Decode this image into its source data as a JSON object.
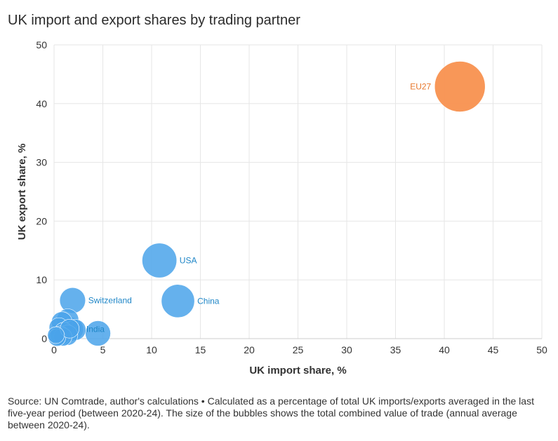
{
  "chart_data": {
    "type": "scatter",
    "title": "UK import and export shares by trading partner",
    "xlabel": "UK import share, %",
    "ylabel": "UK export share, %",
    "xlim": [
      0,
      50
    ],
    "ylim": [
      0,
      50
    ],
    "xticks": [
      0,
      5,
      10,
      15,
      20,
      25,
      30,
      35,
      40,
      45,
      50
    ],
    "yticks": [
      0,
      10,
      20,
      30,
      40,
      50
    ],
    "grid": true,
    "colors": {
      "default": "#4aa3ea",
      "eu": "#f8914f",
      "label_default": "#1f86c7",
      "label_eu": "#e8772b"
    },
    "points": [
      {
        "x": 41.6,
        "y": 42.9,
        "size": 1.0,
        "label": "EU27",
        "group": "eu"
      },
      {
        "x": 10.8,
        "y": 13.3,
        "size": 0.47,
        "label": "USA",
        "group": "default"
      },
      {
        "x": 12.7,
        "y": 6.4,
        "size": 0.43,
        "label": "China",
        "group": "default"
      },
      {
        "x": 1.9,
        "y": 6.5,
        "size": 0.26,
        "label": "Switzerland",
        "group": "default"
      },
      {
        "x": 1.8,
        "y": 1.6,
        "size": 0.22,
        "label": "India",
        "group": "default"
      },
      {
        "x": 4.5,
        "y": 0.9,
        "size": 0.25,
        "label": "",
        "group": "default"
      },
      {
        "x": 1.4,
        "y": 3.2,
        "size": 0.19,
        "label": "",
        "group": "default"
      },
      {
        "x": 0.8,
        "y": 2.8,
        "size": 0.17,
        "label": "",
        "group": "default"
      },
      {
        "x": 0.5,
        "y": 1.9,
        "size": 0.15,
        "label": "",
        "group": "default"
      },
      {
        "x": 2.2,
        "y": 1.5,
        "size": 0.17,
        "label": "",
        "group": "default"
      },
      {
        "x": 1.0,
        "y": 1.1,
        "size": 0.15,
        "label": "",
        "group": "default"
      },
      {
        "x": 1.4,
        "y": 0.6,
        "size": 0.16,
        "label": "",
        "group": "default"
      },
      {
        "x": 0.6,
        "y": 0.5,
        "size": 0.15,
        "label": "",
        "group": "default"
      },
      {
        "x": 0.9,
        "y": 0.3,
        "size": 0.13,
        "label": "",
        "group": "default"
      },
      {
        "x": 0.3,
        "y": 0.2,
        "size": 0.12,
        "label": "",
        "group": "default"
      },
      {
        "x": 1.6,
        "y": 1.7,
        "size": 0.14,
        "label": "",
        "group": "default"
      },
      {
        "x": 0.2,
        "y": 0.6,
        "size": 0.11,
        "label": "",
        "group": "default"
      }
    ],
    "source": "Source: UN Comtrade, author's calculations • Calculated as a percentage of total UK imports/exports averaged in the last five-year period (between 2020-24). The size of the bubbles shows the total combined value of trade (annual average between 2020-24)."
  }
}
